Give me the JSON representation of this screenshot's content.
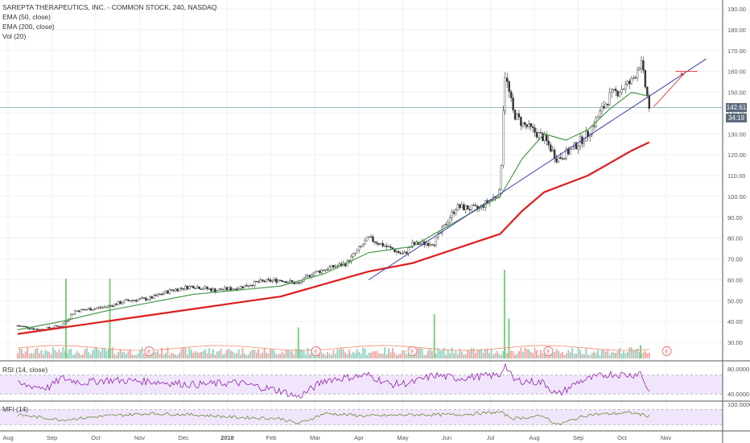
{
  "legend": {
    "title": "SAREPTA THERAPEUTICS, INC. - COMMON STOCK, 240, NASDAQ",
    "ema50": "EMA (50, close)",
    "ema200": "EMA (200, close)",
    "vol": "Vol (20)"
  },
  "rsi_label": "RSI (14, close)",
  "mfi_label": "MFI (14)",
  "price_badge": "142.61",
  "time_badge": "34:19",
  "earnings_marker": "E",
  "chart_data": {
    "type": "candlestick",
    "x_ticks": [
      "Aug",
      "Sep",
      "Oct",
      "Nov",
      "Dec",
      "2018",
      "Feb",
      "Mar",
      "Apr",
      "May",
      "Jun",
      "Jul",
      "Aug",
      "Sep",
      "Oct",
      "Nov"
    ],
    "y_ticks": [
      30,
      40,
      50,
      60,
      70,
      80,
      90,
      100,
      110,
      120,
      130,
      140,
      150,
      160,
      170,
      180,
      190
    ],
    "ylim": [
      25,
      192
    ],
    "last_price": 142.61,
    "price_path": [
      [
        0,
        38
      ],
      [
        0.5,
        36
      ],
      [
        1,
        38
      ],
      [
        1.3,
        45
      ],
      [
        2,
        47
      ],
      [
        2.5,
        50
      ],
      [
        3,
        51
      ],
      [
        3.5,
        55
      ],
      [
        4,
        57
      ],
      [
        4.5,
        55
      ],
      [
        5,
        56
      ],
      [
        5.5,
        59
      ],
      [
        6,
        60
      ],
      [
        6.4,
        58
      ],
      [
        6.7,
        63
      ],
      [
        7,
        65
      ],
      [
        7.5,
        68
      ],
      [
        8,
        80
      ],
      [
        8.4,
        76
      ],
      [
        8.8,
        72
      ],
      [
        9,
        77
      ],
      [
        9.5,
        78
      ],
      [
        10,
        95
      ],
      [
        10.5,
        94
      ],
      [
        11,
        102
      ],
      [
        11.1,
        160
      ],
      [
        11.3,
        140
      ],
      [
        11.5,
        135
      ],
      [
        12,
        128
      ],
      [
        12.3,
        118
      ],
      [
        12.6,
        122
      ],
      [
        13,
        130
      ],
      [
        13.5,
        148
      ],
      [
        14,
        155
      ],
      [
        14.2,
        165
      ],
      [
        14.4,
        143
      ]
    ],
    "ema50_path": [
      [
        0,
        36
      ],
      [
        1,
        40
      ],
      [
        2,
        45
      ],
      [
        3,
        49
      ],
      [
        4,
        53
      ],
      [
        5,
        55
      ],
      [
        6,
        57
      ],
      [
        7,
        63
      ],
      [
        8,
        73
      ],
      [
        9,
        76
      ],
      [
        10,
        88
      ],
      [
        11,
        100
      ],
      [
        11.5,
        118
      ],
      [
        12,
        130
      ],
      [
        12.5,
        127
      ],
      [
        13,
        132
      ],
      [
        13.5,
        142
      ],
      [
        14,
        150
      ],
      [
        14.4,
        148
      ]
    ],
    "ema200_path": [
      [
        0,
        34
      ],
      [
        2,
        40
      ],
      [
        4,
        46
      ],
      [
        5,
        49
      ],
      [
        6,
        52
      ],
      [
        7,
        58
      ],
      [
        8,
        64
      ],
      [
        9,
        68
      ],
      [
        10,
        75
      ],
      [
        11,
        82
      ],
      [
        11.5,
        93
      ],
      [
        12,
        102
      ],
      [
        13,
        110
      ],
      [
        14,
        122
      ],
      [
        14.4,
        126
      ]
    ],
    "trendline": [
      [
        8.0,
        60
      ],
      [
        15.7,
        166
      ]
    ],
    "target_arrow": [
      [
        14.5,
        143
      ],
      [
        15.2,
        159
      ]
    ],
    "target_level": [
      [
        15.0,
        160
      ],
      [
        15.5,
        160
      ]
    ],
    "volume_spikes": [
      [
        1.1,
        0.9
      ],
      [
        2.1,
        0.9
      ],
      [
        6.4,
        0.35
      ],
      [
        9.5,
        0.5
      ],
      [
        11.1,
        1.0
      ],
      [
        11.2,
        0.45
      ],
      [
        14.2,
        0.15
      ]
    ],
    "earnings_at": [
      3,
      6.8,
      9.0,
      12.1,
      14.8
    ],
    "rsi": {
      "ylim": [
        30,
        90
      ],
      "ticks": [
        80,
        40
      ],
      "band": [
        40,
        70
      ],
      "path": [
        [
          0,
          55
        ],
        [
          0.7,
          50
        ],
        [
          1,
          65
        ],
        [
          1.5,
          58
        ],
        [
          2,
          62
        ],
        [
          3,
          60
        ],
        [
          4,
          55
        ],
        [
          5,
          58
        ],
        [
          6,
          45
        ],
        [
          6.4,
          35
        ],
        [
          7,
          62
        ],
        [
          8,
          70
        ],
        [
          8.5,
          55
        ],
        [
          9,
          58
        ],
        [
          9.5,
          70
        ],
        [
          10,
          65
        ],
        [
          11,
          70
        ],
        [
          11.1,
          88
        ],
        [
          11.3,
          62
        ],
        [
          12,
          58
        ],
        [
          12.3,
          38
        ],
        [
          12.8,
          60
        ],
        [
          13.5,
          72
        ],
        [
          14,
          70
        ],
        [
          14.2,
          74
        ],
        [
          14.4,
          42
        ]
      ]
    },
    "mfi": {
      "ylim": [
        0,
        110
      ],
      "ticks": [
        100
      ],
      "band": [
        20,
        80
      ],
      "path": [
        [
          0,
          60
        ],
        [
          1,
          40
        ],
        [
          2,
          55
        ],
        [
          3,
          65
        ],
        [
          4,
          60
        ],
        [
          5,
          50
        ],
        [
          6,
          45
        ],
        [
          6.4,
          25
        ],
        [
          7,
          65
        ],
        [
          8,
          55
        ],
        [
          9,
          60
        ],
        [
          10,
          60
        ],
        [
          11,
          70
        ],
        [
          11.3,
          45
        ],
        [
          12,
          55
        ],
        [
          12.3,
          20
        ],
        [
          13,
          60
        ],
        [
          14,
          68
        ],
        [
          14.4,
          55
        ]
      ]
    }
  }
}
